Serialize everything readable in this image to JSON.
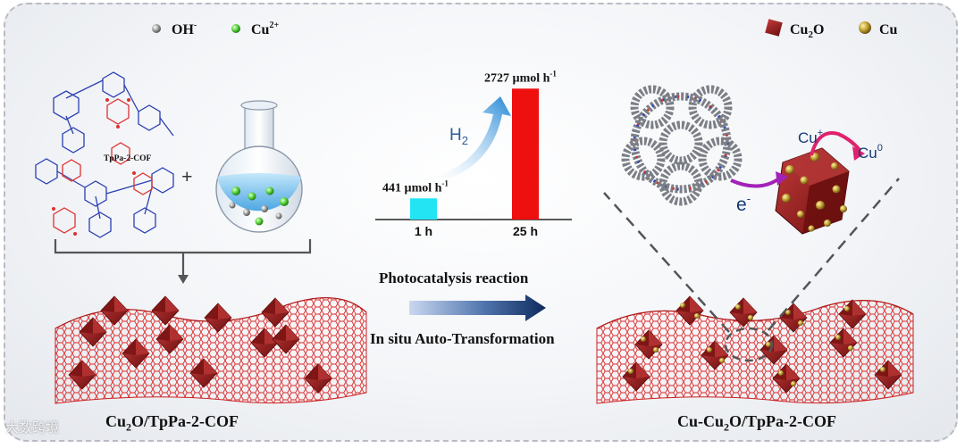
{
  "left_legend": {
    "oh_label": "OH",
    "oh_sup": "-",
    "cu_label": "Cu",
    "cu_sup": "2+"
  },
  "right_legend": {
    "cu2o_label_main": "Cu",
    "cu2o_label_sub": "2",
    "cu2o_label_tail": "O",
    "cu_label": "Cu"
  },
  "molecule": {
    "name": "TpPa-2-COF"
  },
  "plus_sign": "+",
  "chart_data": {
    "type": "bar",
    "categories": [
      "1 h",
      "25 h"
    ],
    "values": [
      441,
      2727
    ],
    "value_labels": [
      "441 µmol h⁻¹",
      "2727 µmol h⁻¹"
    ],
    "bar_colors": [
      "#22e4f2",
      "#ee0f0f"
    ],
    "series_label_main": "H",
    "series_label_sub": "2",
    "ylim": [
      0,
      2900
    ],
    "grid": false
  },
  "bar_labels": {
    "v1_main": "441 µmol h",
    "v1_sup": "-1",
    "v2_main": "2727 µmol h",
    "v2_sup": "-1",
    "cat1": "1 h",
    "cat2": "25 h",
    "h2_main": "H",
    "h2_sub": "2"
  },
  "process": {
    "top_label": "Photocatalysis reaction",
    "bottom_label": "In situ Auto-Transformation"
  },
  "inset": {
    "cu_plus_main": "Cu",
    "cu_plus_sup": "+",
    "cu0_main": "Cu",
    "cu0_sup": "0",
    "electron_main": "e",
    "electron_sup": "-"
  },
  "captions": {
    "left_pre": "Cu",
    "left_sub": "2",
    "left_post": "O/TpPa-2-COF",
    "right_pre": "Cu-Cu",
    "right_sub": "2",
    "right_post": "O/TpPa-2-COF"
  },
  "watermark": "大数跨境",
  "colors": {
    "cu2o": "#9b1c1c",
    "cu": "#b59a2a",
    "cu2plus": "#55d43a",
    "oh": "#9a9a9a",
    "mesh": "#dd2a2a",
    "arrow_dark": "#0d2a5c",
    "bar1": "#22e4f2",
    "bar2": "#ee0f0f"
  }
}
